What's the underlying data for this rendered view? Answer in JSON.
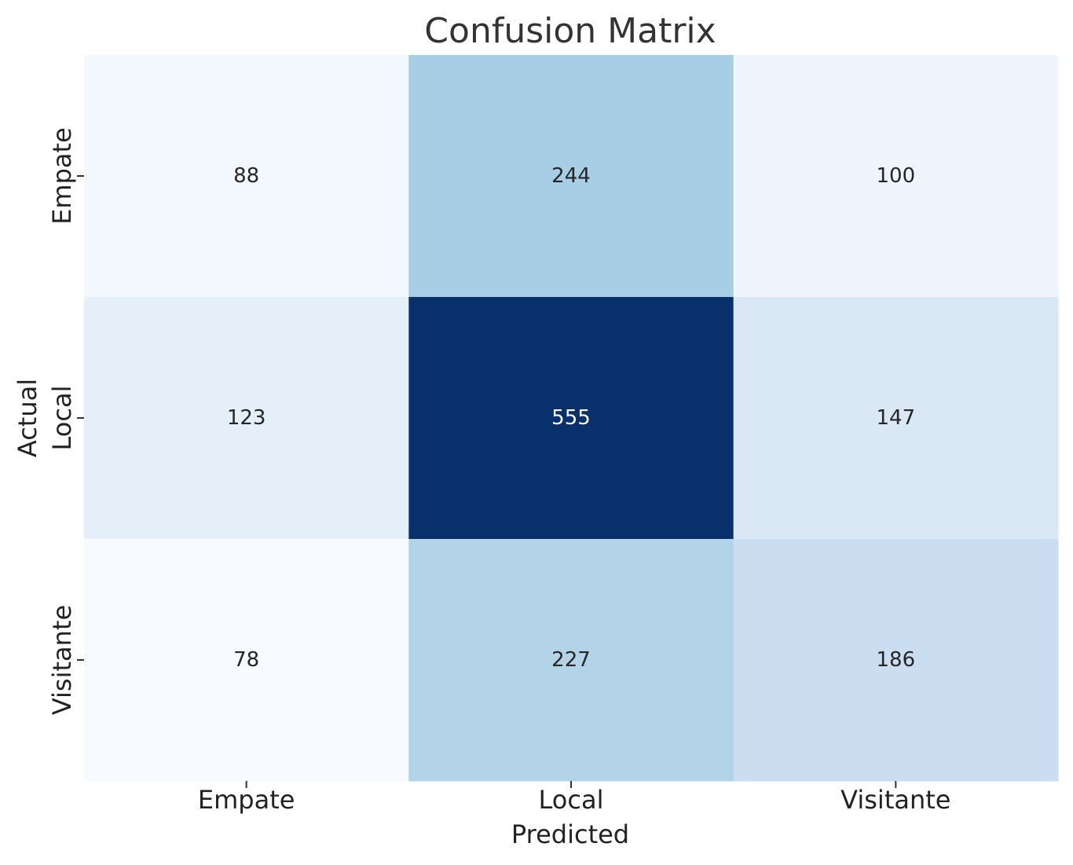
{
  "chart_data": {
    "type": "heatmap",
    "title": "Confusion Matrix",
    "xlabel": "Predicted",
    "ylabel": "Actual",
    "x_categories": [
      "Empate",
      "Local",
      "Visitante"
    ],
    "y_categories": [
      "Empate",
      "Local",
      "Visitante"
    ],
    "values": [
      [
        88,
        244,
        100
      ],
      [
        123,
        555,
        147
      ],
      [
        78,
        227,
        186
      ]
    ],
    "colormap": "Blues",
    "color_range": [
      78,
      555
    ],
    "colorbar": false,
    "grid": false
  }
}
